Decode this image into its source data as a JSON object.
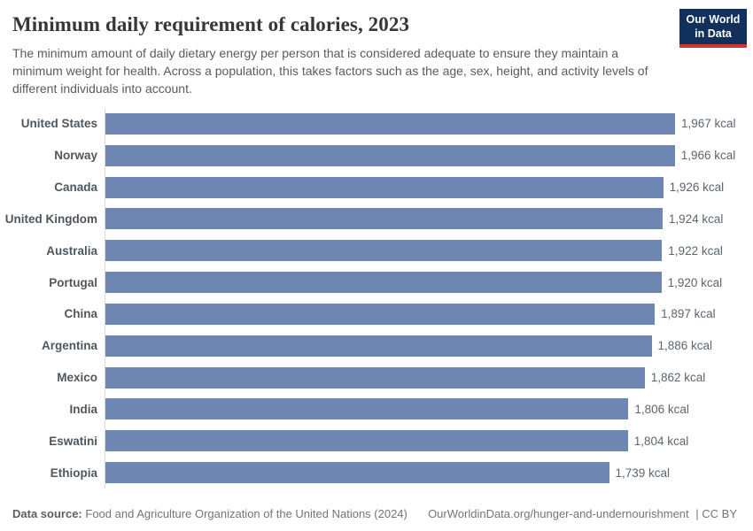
{
  "header": {
    "title": "Minimum daily requirement of calories, 2023",
    "subtitle": "The minimum amount of daily dietary energy per person that is considered adequate to ensure they maintain a minimum weight for health. Across a population, this takes factors such as the age, sex, height, and activity levels of different individuals into account.",
    "logo": {
      "line1": "Our World",
      "line2": "in Data",
      "bg_color": "#12305c",
      "accent_color": "#d2352b"
    }
  },
  "chart_data": {
    "type": "bar",
    "orientation": "horizontal",
    "title": "Minimum daily requirement of calories, 2023",
    "unit": "kcal",
    "xlim": [
      0,
      1967
    ],
    "grid": false,
    "legend": "none",
    "bar_color": "#6e87b2",
    "categories": [
      "United States",
      "Norway",
      "Canada",
      "United Kingdom",
      "Australia",
      "Portugal",
      "China",
      "Argentina",
      "Mexico",
      "India",
      "Eswatini",
      "Ethiopia"
    ],
    "values": [
      1967,
      1966,
      1926,
      1924,
      1922,
      1920,
      1897,
      1886,
      1862,
      1806,
      1804,
      1739
    ],
    "value_labels": [
      "1,967 kcal",
      "1,966 kcal",
      "1,926 kcal",
      "1,924 kcal",
      "1,922 kcal",
      "1,920 kcal",
      "1,897 kcal",
      "1,886 kcal",
      "1,862 kcal",
      "1,806 kcal",
      "1,804 kcal",
      "1,739 kcal"
    ]
  },
  "footer": {
    "datasource_label": "Data source:",
    "datasource_text": "Food and Agriculture Organization of the United Nations (2024)",
    "link": "OurWorldinData.org/hunger-and-undernourishment",
    "license": "| CC BY"
  }
}
